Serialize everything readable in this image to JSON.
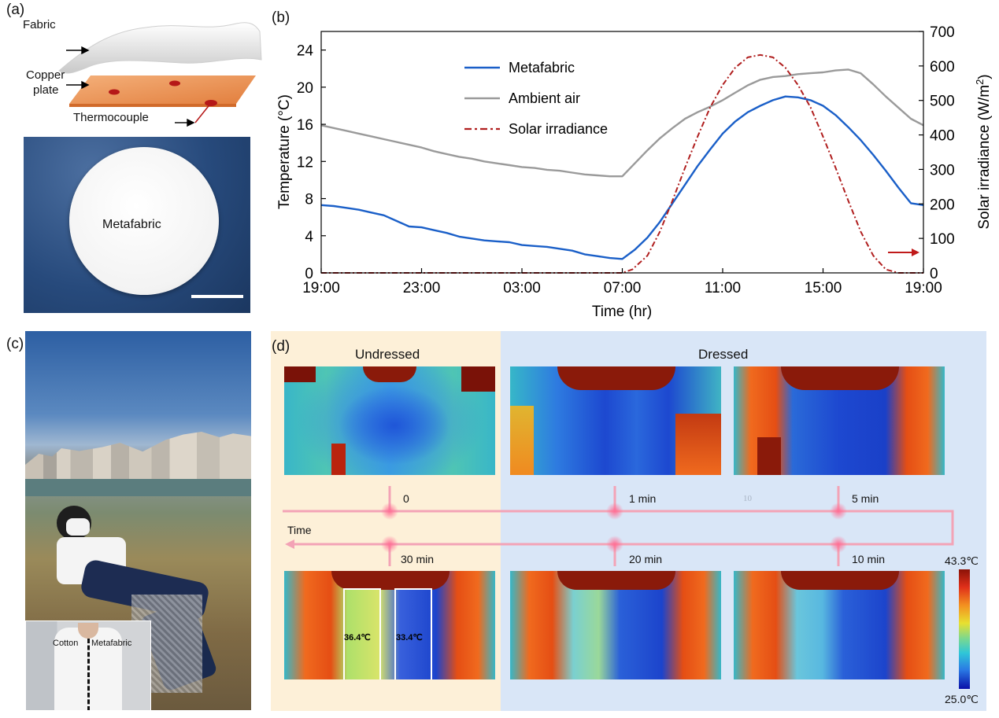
{
  "panels": {
    "a": {
      "label": "(a)",
      "fabric": "Fabric",
      "copper": "Copper",
      "plate": "plate",
      "thermocouple": "Thermocouple",
      "sample": "Metafabric"
    },
    "b": {
      "label": "(b)"
    },
    "c": {
      "label": "(c)",
      "inset_left": "Cotton",
      "inset_right": "Metafabric"
    },
    "d": {
      "label": "(d)",
      "undressed": "Undressed",
      "dressed": "Dressed",
      "time": "Time",
      "stray_mark": "10",
      "times": [
        "0",
        "1 min",
        "5 min",
        "30 min",
        "20 min",
        "10 min"
      ],
      "box_left": "36.4℃",
      "box_right": "33.4℃",
      "scale_max": "43.3℃",
      "scale_min": "25.0℃"
    }
  },
  "colors": {
    "metafabric": "#1a5fc8",
    "ambient": "#9a9a9a",
    "solar": "#b01e1e",
    "undressed_bg": "#fdf0d8",
    "dressed_bg": "#d9e6f7",
    "timeline": "#f3a3b6"
  },
  "chart_data": {
    "type": "line",
    "xlabel": "Time (hr)",
    "ylabel": "Temperature (°C)",
    "y2label": "Solar irradiance (W/m²)",
    "xticks": [
      "19:00",
      "23:00",
      "03:00",
      "07:00",
      "11:00",
      "15:00",
      "19:00"
    ],
    "xlim": [
      0,
      24
    ],
    "ylim": [
      0,
      26
    ],
    "y2lim": [
      0,
      700
    ],
    "yticks": [
      0,
      4,
      8,
      12,
      16,
      20,
      24
    ],
    "y2ticks": [
      0,
      100,
      200,
      300,
      400,
      500,
      600,
      700
    ],
    "legend_position": "top-left",
    "series": [
      {
        "name": "Metafabric",
        "axis": "left",
        "x": [
          0,
          0.5,
          1,
          1.5,
          2,
          2.5,
          3,
          3.5,
          4,
          4.5,
          5,
          5.5,
          6,
          6.5,
          7,
          7.5,
          8,
          8.5,
          9,
          9.5,
          10,
          10.5,
          11,
          11.5,
          12,
          12.5,
          13,
          13.5,
          14,
          14.5,
          15,
          15.5,
          16,
          16.5,
          17,
          17.5,
          18,
          18.5,
          19,
          19.5,
          20,
          20.5,
          21,
          21.5,
          22,
          22.5,
          23,
          23.5,
          24
        ],
        "y": [
          7.3,
          7.2,
          7.0,
          6.8,
          6.5,
          6.2,
          5.6,
          5.0,
          4.9,
          4.6,
          4.3,
          3.9,
          3.7,
          3.5,
          3.4,
          3.3,
          3.0,
          2.9,
          2.8,
          2.6,
          2.4,
          2.0,
          1.8,
          1.6,
          1.5,
          2.5,
          3.8,
          5.5,
          7.5,
          9.5,
          11.5,
          13.3,
          15.0,
          16.3,
          17.3,
          18.0,
          18.6,
          19.0,
          18.9,
          18.6,
          18.0,
          17.0,
          15.7,
          14.3,
          12.7,
          11.0,
          9.2,
          7.5,
          7.3
        ]
      },
      {
        "name": "Ambient air",
        "axis": "left",
        "x": [
          0,
          0.5,
          1,
          1.5,
          2,
          2.5,
          3,
          3.5,
          4,
          4.5,
          5,
          5.5,
          6,
          6.5,
          7,
          7.5,
          8,
          8.5,
          9,
          9.5,
          10,
          10.5,
          11,
          11.5,
          12,
          12.5,
          13,
          13.5,
          14,
          14.5,
          15,
          15.5,
          16,
          16.5,
          17,
          17.5,
          18,
          18.5,
          19,
          19.5,
          20,
          20.5,
          21,
          21.5,
          22,
          22.5,
          23,
          23.5,
          24
        ],
        "y": [
          15.9,
          15.6,
          15.3,
          15.0,
          14.7,
          14.4,
          14.1,
          13.8,
          13.5,
          13.1,
          12.8,
          12.5,
          12.3,
          12.0,
          11.8,
          11.6,
          11.4,
          11.3,
          11.1,
          11.0,
          10.8,
          10.6,
          10.5,
          10.4,
          10.4,
          11.8,
          13.2,
          14.5,
          15.6,
          16.6,
          17.3,
          17.9,
          18.6,
          19.4,
          20.2,
          20.8,
          21.1,
          21.2,
          21.4,
          21.5,
          21.6,
          21.8,
          21.9,
          21.5,
          20.3,
          19.0,
          17.8,
          16.6,
          15.9
        ]
      },
      {
        "name": "Solar irradiance",
        "axis": "right",
        "style": "dash-dot",
        "x": [
          0,
          6,
          12,
          12.4,
          13,
          13.5,
          14,
          14.5,
          15,
          15.5,
          16,
          16.5,
          17,
          17.5,
          18,
          18.5,
          19,
          19.5,
          20,
          20.5,
          21,
          21.5,
          22,
          22.5,
          23,
          23.5,
          24
        ],
        "y": [
          0,
          0,
          0,
          10,
          50,
          120,
          210,
          305,
          395,
          480,
          545,
          595,
          625,
          632,
          625,
          595,
          545,
          480,
          395,
          305,
          210,
          120,
          50,
          10,
          0,
          0,
          0
        ]
      }
    ]
  }
}
